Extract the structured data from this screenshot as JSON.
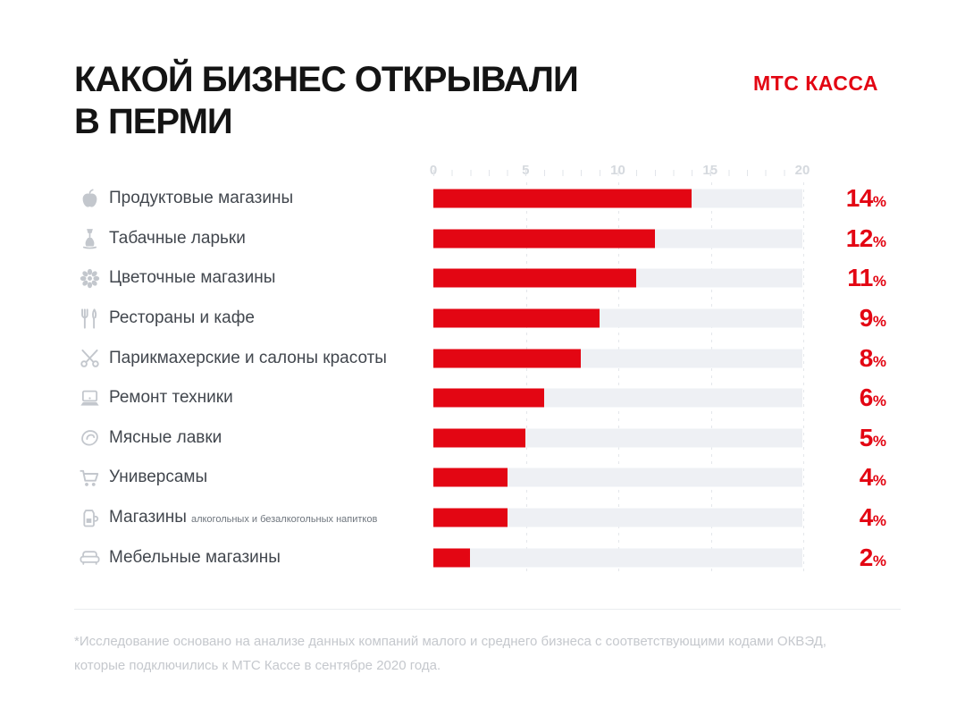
{
  "title": {
    "line1": "КАКОЙ БИЗНЕС ОТКРЫВАЛИ",
    "line2": "В ПЕРМИ"
  },
  "logo": "МТС КАССА",
  "colors": {
    "accent": "#e30613",
    "bar_track": "#eef0f4",
    "icon_gray": "#c3c7cd",
    "label_gray": "#42474e",
    "axis_gray": "#d5d9de",
    "footnote_gray": "#c5c8cd"
  },
  "axis": {
    "min": 0,
    "max": 20,
    "ticks": [
      "0",
      "5",
      "10",
      "15",
      "20"
    ]
  },
  "percent_sign": "%",
  "rows": [
    {
      "icon": "apple-icon",
      "label": "Продуктовые магазины",
      "label_small": "",
      "value": 14,
      "percent": "14"
    },
    {
      "icon": "hookah-icon",
      "label": "Табачные ларьки",
      "label_small": "",
      "value": 12,
      "percent": "12"
    },
    {
      "icon": "flower-icon",
      "label": "Цветочные магазины",
      "label_small": "",
      "value": 11,
      "percent": "11"
    },
    {
      "icon": "cutlery-icon",
      "label": "Рестораны и кафе",
      "label_small": "",
      "value": 9,
      "percent": "9"
    },
    {
      "icon": "scissors-icon",
      "label": "Парикмахерские и салоны красоты",
      "label_small": "",
      "value": 8,
      "percent": "8"
    },
    {
      "icon": "laptop-icon",
      "label": "Ремонт техники",
      "label_small": "",
      "value": 6,
      "percent": "6"
    },
    {
      "icon": "steak-icon",
      "label": "Мясные лавки",
      "label_small": "",
      "value": 5,
      "percent": "5"
    },
    {
      "icon": "cart-icon",
      "label": "Универсамы",
      "label_small": "",
      "value": 4,
      "percent": "4"
    },
    {
      "icon": "jug-icon",
      "label": "Магазины",
      "label_small": "алкогольных и безалкогольных напитков",
      "value": 4,
      "percent": "4"
    },
    {
      "icon": "sofa-icon",
      "label": "Мебельные магазины",
      "label_small": "",
      "value": 2,
      "percent": "2"
    }
  ],
  "footnote": {
    "line1": "*Исследование основано на анализе данных компаний малого и среднего бизнеса с соответствующими кодами ОКВЭД,",
    "line2": "которые подключились к МТС Кассе в сентябре 2020 года."
  },
  "chart_data": {
    "type": "bar",
    "orientation": "horizontal",
    "title": "КАКОЙ БИЗНЕС ОТКРЫВАЛИ В ПЕРМИ",
    "categories": [
      "Продуктовые магазины",
      "Табачные ларьки",
      "Цветочные магазины",
      "Рестораны и кафе",
      "Парикмахерские и салоны красоты",
      "Ремонт техники",
      "Мясные лавки",
      "Универсамы",
      "Магазины алкогольных и безалкогольных напитков",
      "Мебельные магазины"
    ],
    "values": [
      14,
      12,
      11,
      9,
      8,
      6,
      5,
      4,
      4,
      2
    ],
    "unit": "%",
    "xlabel": "",
    "ylabel": "",
    "xlim": [
      0,
      20
    ],
    "xticks": [
      0,
      5,
      10,
      15,
      20
    ],
    "grid": "dotted-vertical",
    "bar_color": "#e30613",
    "track_color": "#eef0f4",
    "value_labels": [
      "14%",
      "12%",
      "11%",
      "9%",
      "8%",
      "6%",
      "5%",
      "4%",
      "4%",
      "2%"
    ],
    "source_note": "*Исследование основано на анализе данных компаний малого и среднего бизнеса с соответствующими кодами ОКВЭД, которые подключились к МТС Кассе в сентябре 2020 года."
  }
}
